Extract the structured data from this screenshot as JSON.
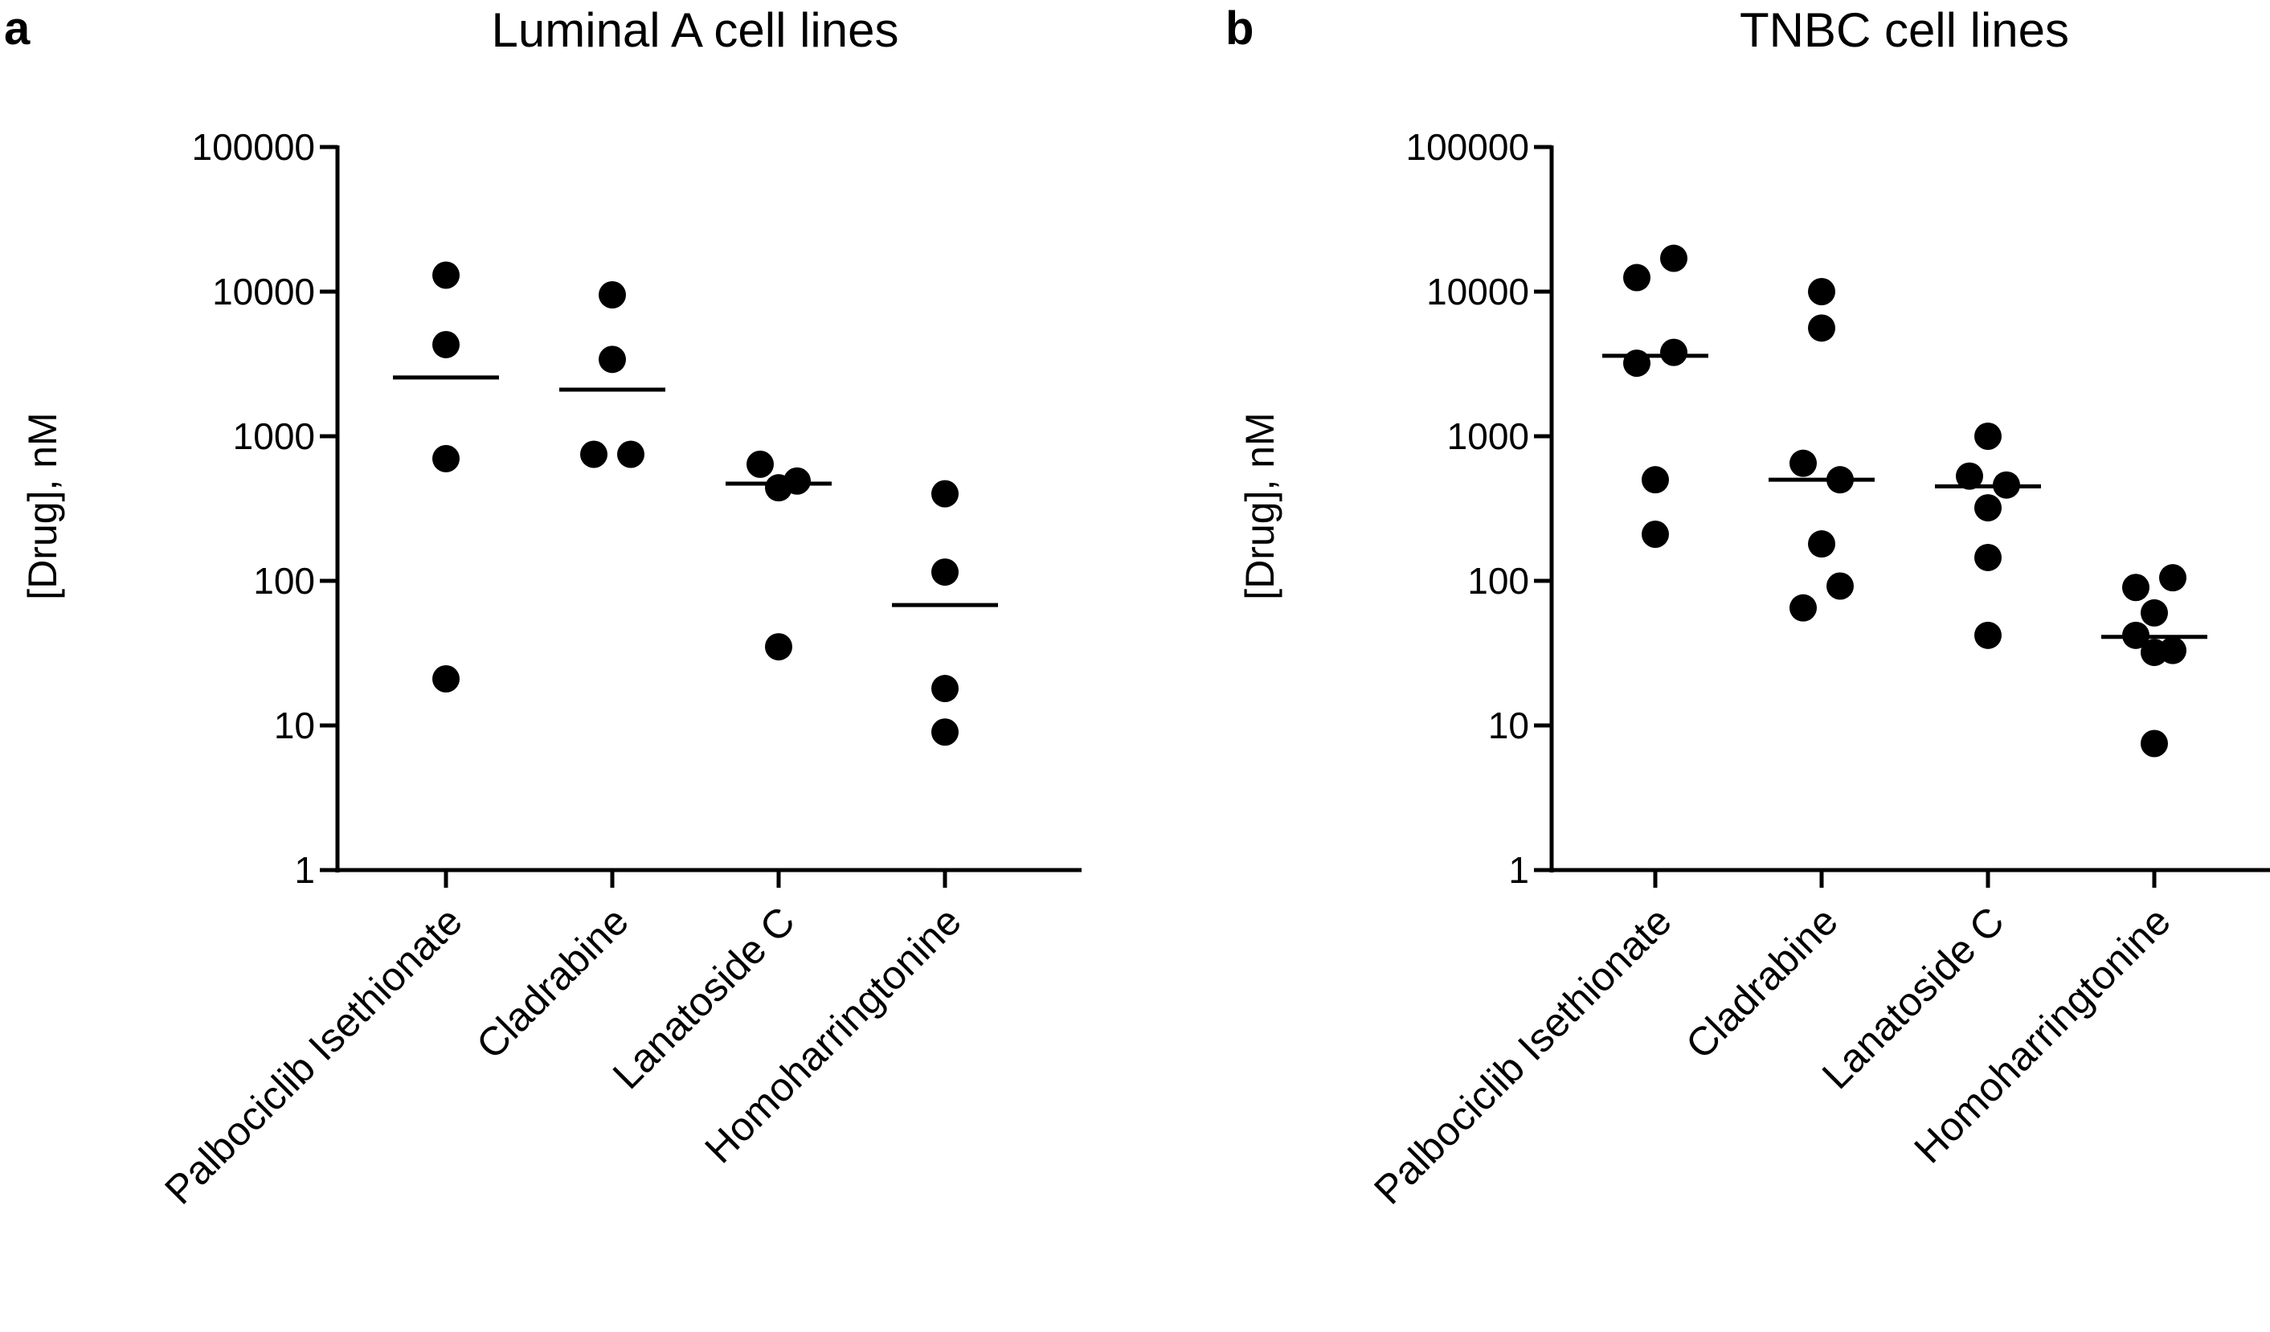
{
  "chart_data": [
    {
      "type": "scatter",
      "panel_letter": "a",
      "title": "Luminal A cell lines",
      "xlabel": "",
      "ylabel": "[Drug], nM",
      "yscale": "log",
      "ylim": [
        1,
        100000
      ],
      "y_tick_labels": [
        "1",
        "10",
        "100",
        "1000",
        "10000",
        "100000"
      ],
      "y_tick_values": [
        1,
        10,
        100,
        1000,
        10000,
        100000
      ],
      "grid": false,
      "categories": [
        "Palbociclib Isethionate",
        "Cladrabine",
        "Lanatoside C",
        "Homoharringtonine"
      ],
      "series": [
        {
          "category": "Palbociclib Isethionate",
          "points": [
            {
              "offset": 0,
              "y": 13000
            },
            {
              "offset": 0,
              "y": 4300
            },
            {
              "offset": 0,
              "y": 700
            },
            {
              "offset": 0,
              "y": 21
            }
          ],
          "median": 2550
        },
        {
          "category": "Cladrabine",
          "points": [
            {
              "offset": 0,
              "y": 9500
            },
            {
              "offset": 0,
              "y": 3400
            },
            {
              "offset": -0.5,
              "y": 750
            },
            {
              "offset": 0.5,
              "y": 750
            }
          ],
          "median": 2100
        },
        {
          "category": "Lanatoside C",
          "points": [
            {
              "offset": -0.5,
              "y": 640
            },
            {
              "offset": 0,
              "y": 440
            },
            {
              "offset": 0.5,
              "y": 490
            },
            {
              "offset": 0,
              "y": 35
            }
          ],
          "median": 470
        },
        {
          "category": "Homoharringtonine",
          "points": [
            {
              "offset": 0,
              "y": 400
            },
            {
              "offset": 0,
              "y": 115
            },
            {
              "offset": 0,
              "y": 18
            },
            {
              "offset": 0,
              "y": 9
            }
          ],
          "median": 68
        }
      ]
    },
    {
      "type": "scatter",
      "panel_letter": "b",
      "title": "TNBC cell lines",
      "xlabel": "",
      "ylabel": "[Drug], nM",
      "yscale": "log",
      "ylim": [
        1,
        100000
      ],
      "y_tick_labels": [
        "1",
        "10",
        "100",
        "1000",
        "10000",
        "100000"
      ],
      "y_tick_values": [
        1,
        10,
        100,
        1000,
        10000,
        100000
      ],
      "grid": false,
      "categories": [
        "Palbociclib Isethionate",
        "Cladrabine",
        "Lanatoside C",
        "Homoharringtonine"
      ],
      "series": [
        {
          "category": "Palbociclib Isethionate",
          "points": [
            {
              "offset": -0.5,
              "y": 12500
            },
            {
              "offset": 0.5,
              "y": 17000
            },
            {
              "offset": -0.5,
              "y": 3200
            },
            {
              "offset": 0.5,
              "y": 3800
            },
            {
              "offset": 0,
              "y": 500
            },
            {
              "offset": 0,
              "y": 210
            }
          ],
          "median": 3600
        },
        {
          "category": "Cladrabine",
          "points": [
            {
              "offset": 0,
              "y": 10000
            },
            {
              "offset": 0,
              "y": 5600
            },
            {
              "offset": -0.5,
              "y": 650
            },
            {
              "offset": 0.5,
              "y": 500
            },
            {
              "offset": 0,
              "y": 180
            },
            {
              "offset": 0.5,
              "y": 92
            },
            {
              "offset": -0.5,
              "y": 65
            }
          ],
          "median": 500
        },
        {
          "category": "Lanatoside C",
          "points": [
            {
              "offset": 0,
              "y": 1000
            },
            {
              "offset": -0.5,
              "y": 530
            },
            {
              "offset": 0.5,
              "y": 460
            },
            {
              "offset": 0,
              "y": 320
            },
            {
              "offset": 0,
              "y": 145
            },
            {
              "offset": 0,
              "y": 42
            }
          ],
          "median": 450
        },
        {
          "category": "Homoharringtonine",
          "points": [
            {
              "offset": -0.5,
              "y": 90
            },
            {
              "offset": 0.5,
              "y": 105
            },
            {
              "offset": 0,
              "y": 60
            },
            {
              "offset": -0.5,
              "y": 42
            },
            {
              "offset": 0.5,
              "y": 33
            },
            {
              "offset": 0,
              "y": 32
            },
            {
              "offset": 0,
              "y": 7.5
            }
          ],
          "median": 41
        }
      ]
    }
  ]
}
